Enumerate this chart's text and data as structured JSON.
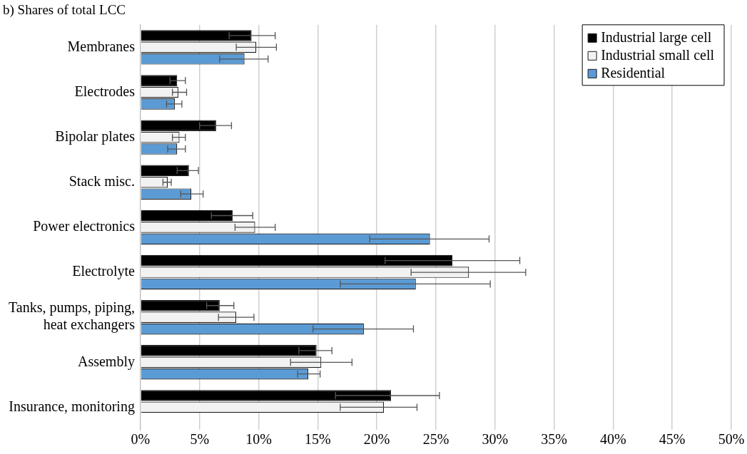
{
  "chart_data": {
    "type": "bar",
    "orientation": "horizontal",
    "title": "b) Shares of total LCC",
    "categories": [
      "Membranes",
      "Electrodes",
      "Bipolar plates",
      "Stack misc.",
      "Power electronics",
      "Electrolyte",
      "Tanks, pumps, piping, heat exchangers",
      "Assembly",
      "Insurance, monitoring"
    ],
    "series": [
      {
        "name": "Industrial large cell",
        "color": "#000000",
        "values": [
          9.4,
          3.1,
          6.4,
          4.1,
          7.8,
          26.4,
          6.7,
          14.9,
          21.2
        ],
        "errors": [
          [
            7.5,
            11.4
          ],
          [
            2.5,
            3.8
          ],
          [
            5.0,
            7.7
          ],
          [
            3.1,
            4.9
          ],
          [
            6.0,
            9.5
          ],
          [
            20.7,
            32.1
          ],
          [
            5.6,
            7.9
          ],
          [
            13.4,
            16.2
          ],
          [
            16.5,
            25.3
          ]
        ]
      },
      {
        "name": "Industrial small cell",
        "color": "#f2f2f2",
        "values": [
          9.8,
          3.2,
          3.3,
          2.3,
          9.7,
          27.8,
          8.1,
          15.3,
          20.6
        ],
        "errors": [
          [
            8.1,
            11.5
          ],
          [
            2.7,
            3.9
          ],
          [
            2.7,
            3.8
          ],
          [
            1.9,
            2.6
          ],
          [
            8.0,
            11.4
          ],
          [
            22.9,
            32.6
          ],
          [
            6.6,
            9.6
          ],
          [
            12.7,
            17.9
          ],
          [
            16.9,
            23.4
          ]
        ]
      },
      {
        "name": "Residential",
        "color": "#5b9bd5",
        "values": [
          8.8,
          2.9,
          3.1,
          4.3,
          24.5,
          23.3,
          18.9,
          14.2,
          null
        ],
        "errors": [
          [
            6.7,
            10.8
          ],
          [
            2.2,
            3.5
          ],
          [
            2.3,
            3.8
          ],
          [
            3.4,
            5.3
          ],
          [
            19.4,
            29.5
          ],
          [
            16.9,
            29.6
          ],
          [
            14.6,
            23.1
          ],
          [
            13.3,
            15.2
          ],
          null
        ]
      }
    ],
    "xlim": [
      0,
      50
    ],
    "xticks": [
      {
        "value": 0,
        "label": "0%"
      },
      {
        "value": 5,
        "label": "5%"
      },
      {
        "value": 10,
        "label": "10%"
      },
      {
        "value": 15,
        "label": "15%"
      },
      {
        "value": 20,
        "label": "20%"
      },
      {
        "value": 25,
        "label": "25%"
      },
      {
        "value": 30,
        "label": "30%"
      },
      {
        "value": 35,
        "label": "35%"
      },
      {
        "value": 40,
        "label": "40%"
      },
      {
        "value": 45,
        "label": "45%"
      },
      {
        "value": 50,
        "label": "50%"
      }
    ],
    "grid": "x",
    "legend": "top right"
  }
}
